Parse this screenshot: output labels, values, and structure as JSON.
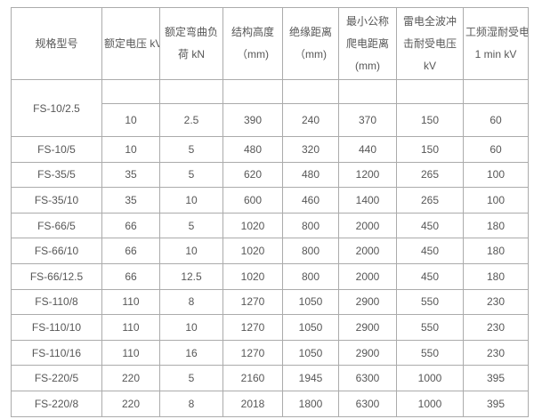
{
  "style": {
    "border_color": "#ababab",
    "outer_border_color": "#8f8f8f",
    "text_color": "#575757",
    "background": "#ffffff"
  },
  "table": {
    "columns": [
      {
        "id": "model",
        "lines": [
          "规格型号"
        ]
      },
      {
        "id": "rated-voltage",
        "lines": [
          "额定电压 kV"
        ]
      },
      {
        "id": "rated-bending-load",
        "lines": [
          "额定弯曲负",
          "荷 kN"
        ]
      },
      {
        "id": "structure-height",
        "lines": [
          "结构高度",
          "（mm)"
        ]
      },
      {
        "id": "insulation-distance",
        "lines": [
          "绝缘距离",
          "（mm)"
        ]
      },
      {
        "id": "min-nominal-creepage",
        "lines": [
          "最小公称",
          "爬电距离",
          "(mm)"
        ]
      },
      {
        "id": "lightning-impulse-withstand",
        "lines": [
          "雷电全波冲",
          "击耐受电压",
          "kV"
        ]
      },
      {
        "id": "pf-wet-withstand",
        "lines": [
          "工频湿耐受电压",
          "1 min kV"
        ]
      }
    ],
    "rows": [
      {
        "model": "FS-10/2.5",
        "values": [
          "10",
          "2.5",
          "390",
          "240",
          "370",
          "150",
          "60"
        ]
      },
      {
        "model": "FS-10/5",
        "values": [
          "10",
          "5",
          "480",
          "320",
          "440",
          "150",
          "60"
        ]
      },
      {
        "model": "FS-35/5",
        "values": [
          "35",
          "5",
          "620",
          "480",
          "1200",
          "265",
          "100"
        ]
      },
      {
        "model": "FS-35/10",
        "values": [
          "35",
          "10",
          "600",
          "460",
          "1400",
          "265",
          "100"
        ]
      },
      {
        "model": "FS-66/5",
        "values": [
          "66",
          "5",
          "1020",
          "800",
          "2000",
          "450",
          "180"
        ]
      },
      {
        "model": "FS-66/10",
        "values": [
          "66",
          "10",
          "1020",
          "800",
          "2000",
          "450",
          "180"
        ]
      },
      {
        "model": "FS-66/12.5",
        "values": [
          "66",
          "12.5",
          "1020",
          "800",
          "2000",
          "450",
          "180"
        ]
      },
      {
        "model": "FS-110/8",
        "values": [
          "110",
          "8",
          "1270",
          "1050",
          "2900",
          "550",
          "230"
        ]
      },
      {
        "model": "FS-110/10",
        "values": [
          "110",
          "10",
          "1270",
          "1050",
          "2900",
          "550",
          "230"
        ]
      },
      {
        "model": "FS-110/16",
        "values": [
          "110",
          "16",
          "1270",
          "1050",
          "2900",
          "550",
          "230"
        ]
      },
      {
        "model": "FS-220/5",
        "values": [
          "220",
          "5",
          "2160",
          "1945",
          "6300",
          "1000",
          "395"
        ]
      },
      {
        "model": "FS-220/8",
        "values": [
          "220",
          "8",
          "2018",
          "1800",
          "6300",
          "1000",
          "395"
        ]
      }
    ]
  }
}
